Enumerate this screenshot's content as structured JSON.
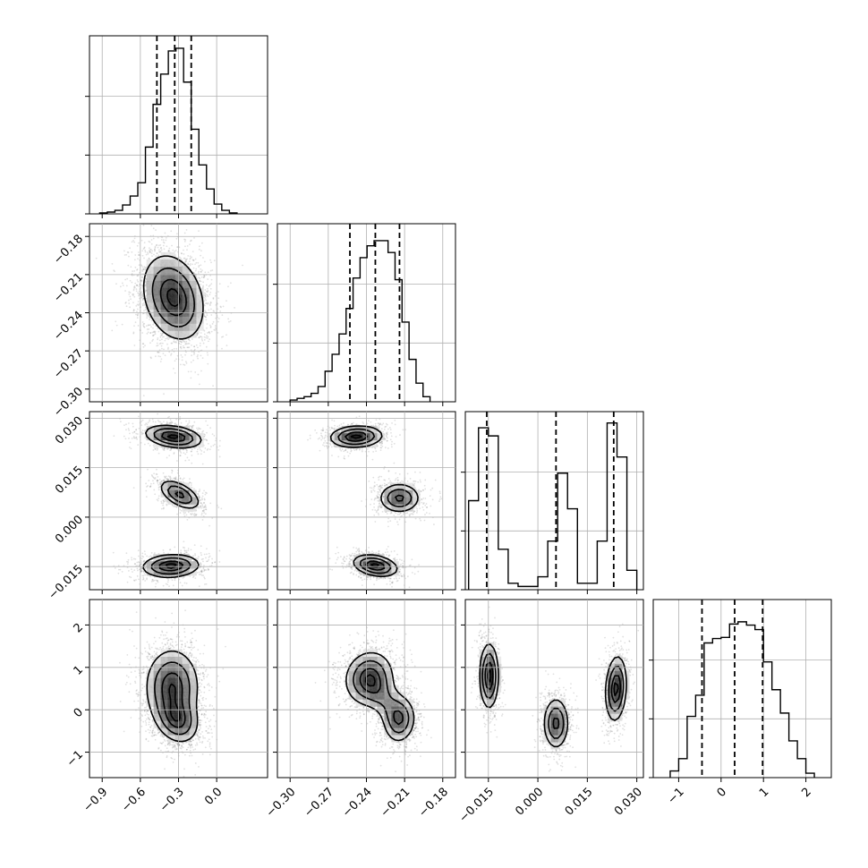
{
  "chart_data": {
    "type": "corner",
    "grid": true,
    "style": {
      "line_color": "#000000",
      "grid_color": "#b0b0b0",
      "density_colormap": [
        "#ffffff",
        "#000000"
      ],
      "points_color": "#000000"
    },
    "parameters": [
      {
        "ticks": [
          -0.9,
          -0.6,
          -0.3,
          0.0
        ],
        "tick_labels": [
          "−0.9",
          "−0.6",
          "−0.3",
          "0.0"
        ],
        "range": [
          -1.0,
          0.4
        ]
      },
      {
        "ticks": [
          -0.3,
          -0.27,
          -0.24,
          -0.21,
          -0.18
        ],
        "tick_labels": [
          "−0.30",
          "−0.27",
          "−0.24",
          "−0.21",
          "−0.18"
        ],
        "range": [
          -0.31,
          -0.17
        ]
      },
      {
        "ticks": [
          -0.015,
          0.0,
          0.015,
          0.03
        ],
        "tick_labels": [
          "−0.015",
          "0.000",
          "0.015",
          "0.030"
        ],
        "range": [
          -0.022,
          0.032
        ]
      },
      {
        "ticks": [
          -1,
          0,
          1,
          2
        ],
        "tick_labels": [
          "−1",
          "0",
          "1",
          "2"
        ],
        "range": [
          -1.6,
          2.6
        ]
      }
    ],
    "marginals": [
      {
        "parameter": 0,
        "quantiles": [
          -0.47,
          -0.33,
          -0.2
        ],
        "bin_edges": [
          -0.92,
          -0.86,
          -0.8,
          -0.74,
          -0.68,
          -0.62,
          -0.56,
          -0.5,
          -0.44,
          -0.38,
          -0.32,
          -0.26,
          -0.2,
          -0.14,
          -0.08,
          -0.02,
          0.04,
          0.1,
          0.16
        ],
        "counts": [
          1,
          2,
          4,
          10,
          20,
          35,
          75,
          123,
          157,
          183,
          186,
          148,
          95,
          55,
          28,
          11,
          4,
          1
        ],
        "ylim": [
          0,
          200
        ]
      },
      {
        "parameter": 1,
        "quantiles": [
          -0.253,
          -0.233,
          -0.214
        ],
        "bin_edges": [
          -0.3,
          -0.2945,
          -0.289,
          -0.2835,
          -0.278,
          -0.2725,
          -0.267,
          -0.2615,
          -0.256,
          -0.2505,
          -0.245,
          -0.2395,
          -0.234,
          -0.2285,
          -0.223,
          -0.2175,
          -0.212,
          -0.2065,
          -0.201,
          -0.1955,
          -0.19
        ],
        "counts": [
          1,
          2,
          3,
          5,
          9,
          18,
          28,
          40,
          55,
          73,
          85,
          92,
          95,
          95,
          88,
          72,
          47,
          25,
          11,
          3
        ],
        "ylim": [
          0,
          105
        ]
      },
      {
        "parameter": 2,
        "quantiles": [
          -0.0155,
          0.0055,
          0.023
        ],
        "bin_edges": [
          -0.021,
          -0.018,
          -0.015,
          -0.012,
          -0.009,
          -0.006,
          -0.003,
          0.0,
          0.003,
          0.006,
          0.009,
          0.012,
          0.015,
          0.018,
          0.021,
          0.024,
          0.027,
          0.03
        ],
        "counts": [
          55,
          100,
          95,
          25,
          4,
          2,
          2,
          8,
          30,
          72,
          50,
          4,
          4,
          30,
          103,
          82,
          12
        ],
        "ylim": [
          0,
          110
        ]
      },
      {
        "parameter": 3,
        "quantiles": [
          -0.45,
          0.32,
          0.98
        ],
        "bin_edges": [
          -1.2,
          -1.0,
          -0.8,
          -0.6,
          -0.4,
          -0.2,
          0.0,
          0.2,
          0.4,
          0.6,
          0.8,
          1.0,
          1.2,
          1.4,
          1.6,
          1.8,
          2.0,
          2.2
        ],
        "counts": [
          6,
          17,
          55,
          74,
          121,
          125,
          126,
          138,
          140,
          137,
          133,
          104,
          79,
          58,
          33,
          17,
          4
        ],
        "ylim": [
          0,
          160
        ]
      }
    ],
    "pairs": [
      {
        "x": 0,
        "y": 1,
        "blobs": [
          {
            "cx": -0.34,
            "cy": -0.228,
            "sx": 0.15,
            "sy": 0.021,
            "rho": -0.25,
            "w": 1.0
          }
        ]
      },
      {
        "x": 0,
        "y": 2,
        "blobs": [
          {
            "cx": -0.34,
            "cy": 0.0244,
            "sx": 0.14,
            "sy": 0.0022,
            "rho": -0.3,
            "w": 1.0
          },
          {
            "cx": -0.29,
            "cy": 0.0068,
            "sx": 0.1,
            "sy": 0.0028,
            "rho": -0.55,
            "w": 0.85
          },
          {
            "cx": -0.36,
            "cy": -0.0148,
            "sx": 0.14,
            "sy": 0.0022,
            "rho": 0.1,
            "w": 1.0
          }
        ]
      },
      {
        "x": 1,
        "y": 2,
        "blobs": [
          {
            "cx": -0.248,
            "cy": 0.0244,
            "sx": 0.013,
            "sy": 0.0021,
            "rho": 0.1,
            "w": 1.0
          },
          {
            "cx": -0.214,
            "cy": 0.0058,
            "sx": 0.01,
            "sy": 0.0028,
            "rho": 0.0,
            "w": 0.85
          },
          {
            "cx": -0.233,
            "cy": -0.0147,
            "sx": 0.011,
            "sy": 0.0021,
            "rho": -0.3,
            "w": 1.0
          }
        ]
      },
      {
        "x": 0,
        "y": 3,
        "blobs": [
          {
            "cx": -0.35,
            "cy": 0.55,
            "sx": 0.13,
            "sy": 0.55,
            "rho": 0.0,
            "w": 1.0
          },
          {
            "cx": -0.3,
            "cy": -0.3,
            "sx": 0.1,
            "sy": 0.32,
            "rho": -0.2,
            "w": 0.7
          }
        ]
      },
      {
        "x": 1,
        "y": 3,
        "blobs": [
          {
            "cx": -0.238,
            "cy": 0.75,
            "sx": 0.012,
            "sy": 0.4,
            "rho": 0.1,
            "w": 1.0
          },
          {
            "cx": -0.214,
            "cy": -0.25,
            "sx": 0.008,
            "sy": 0.35,
            "rho": 0.1,
            "w": 0.8
          },
          {
            "cx": -0.225,
            "cy": 0.2,
            "sx": 0.01,
            "sy": 0.35,
            "rho": -0.5,
            "w": 0.4
          }
        ]
      },
      {
        "x": 2,
        "y": 3,
        "blobs": [
          {
            "cx": -0.0148,
            "cy": 0.8,
            "sx": 0.0018,
            "sy": 0.48,
            "rho": 0.0,
            "w": 1.0
          },
          {
            "cx": 0.0055,
            "cy": -0.32,
            "sx": 0.0024,
            "sy": 0.38,
            "rho": 0.0,
            "w": 0.85
          },
          {
            "cx": 0.0237,
            "cy": 0.5,
            "sx": 0.002,
            "sy": 0.48,
            "rho": 0.15,
            "w": 1.0
          }
        ]
      }
    ]
  }
}
